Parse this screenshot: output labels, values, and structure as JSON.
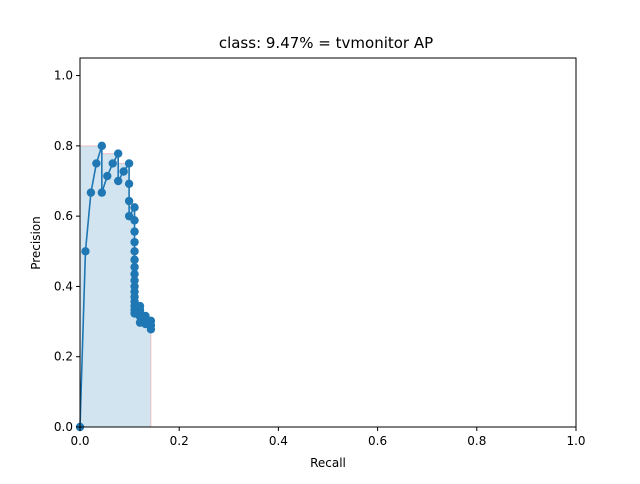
{
  "chart_data": {
    "type": "line",
    "title": "class: 9.47% = tvmonitor AP",
    "xlabel": "Recall",
    "ylabel": "Precision",
    "xlim": [
      0.0,
      1.0
    ],
    "ylim": [
      0.0,
      1.05
    ],
    "x_ticks": [
      "0.0",
      "0.2",
      "0.4",
      "0.6",
      "0.8",
      "1.0"
    ],
    "y_ticks": [
      "0.0",
      "0.2",
      "0.4",
      "0.6",
      "0.8",
      "1.0"
    ],
    "grid": false,
    "legend": "none",
    "series": [
      {
        "color": "#1f77b4",
        "marker": "circle",
        "x": [
          0.0,
          0.011,
          0.022,
          0.033,
          0.044,
          0.044,
          0.055,
          0.066,
          0.077,
          0.077,
          0.088,
          0.099,
          0.099,
          0.099,
          0.099,
          0.11,
          0.11,
          0.11,
          0.11,
          0.11,
          0.11,
          0.11,
          0.11,
          0.11,
          0.11,
          0.11,
          0.11,
          0.11,
          0.11,
          0.11,
          0.11,
          0.121,
          0.121,
          0.121,
          0.121,
          0.121,
          0.132,
          0.132,
          0.132,
          0.143,
          0.143,
          0.143
        ],
        "y": [
          0.0,
          0.5,
          0.667,
          0.75,
          0.8,
          0.667,
          0.714,
          0.75,
          0.778,
          0.7,
          0.727,
          0.75,
          0.692,
          0.643,
          0.6,
          0.625,
          0.588,
          0.556,
          0.526,
          0.5,
          0.476,
          0.455,
          0.435,
          0.417,
          0.4,
          0.385,
          0.37,
          0.357,
          0.345,
          0.333,
          0.323,
          0.344,
          0.333,
          0.324,
          0.314,
          0.297,
          0.316,
          0.308,
          0.293,
          0.302,
          0.289,
          0.278
        ]
      }
    ],
    "fill": {
      "color": "#1f77b4",
      "opacity": 0.2,
      "edge_color": "#ff0000",
      "x": [
        0.0,
        0.011,
        0.011,
        0.044,
        0.044,
        0.077,
        0.077,
        0.099,
        0.099,
        0.11,
        0.11,
        0.121,
        0.121,
        0.132,
        0.132,
        0.143,
        0.143
      ],
      "y": [
        0.8,
        0.8,
        0.8,
        0.8,
        0.778,
        0.778,
        0.75,
        0.75,
        0.625,
        0.625,
        0.344,
        0.344,
        0.316,
        0.316,
        0.302,
        0.302,
        0.0
      ]
    }
  }
}
